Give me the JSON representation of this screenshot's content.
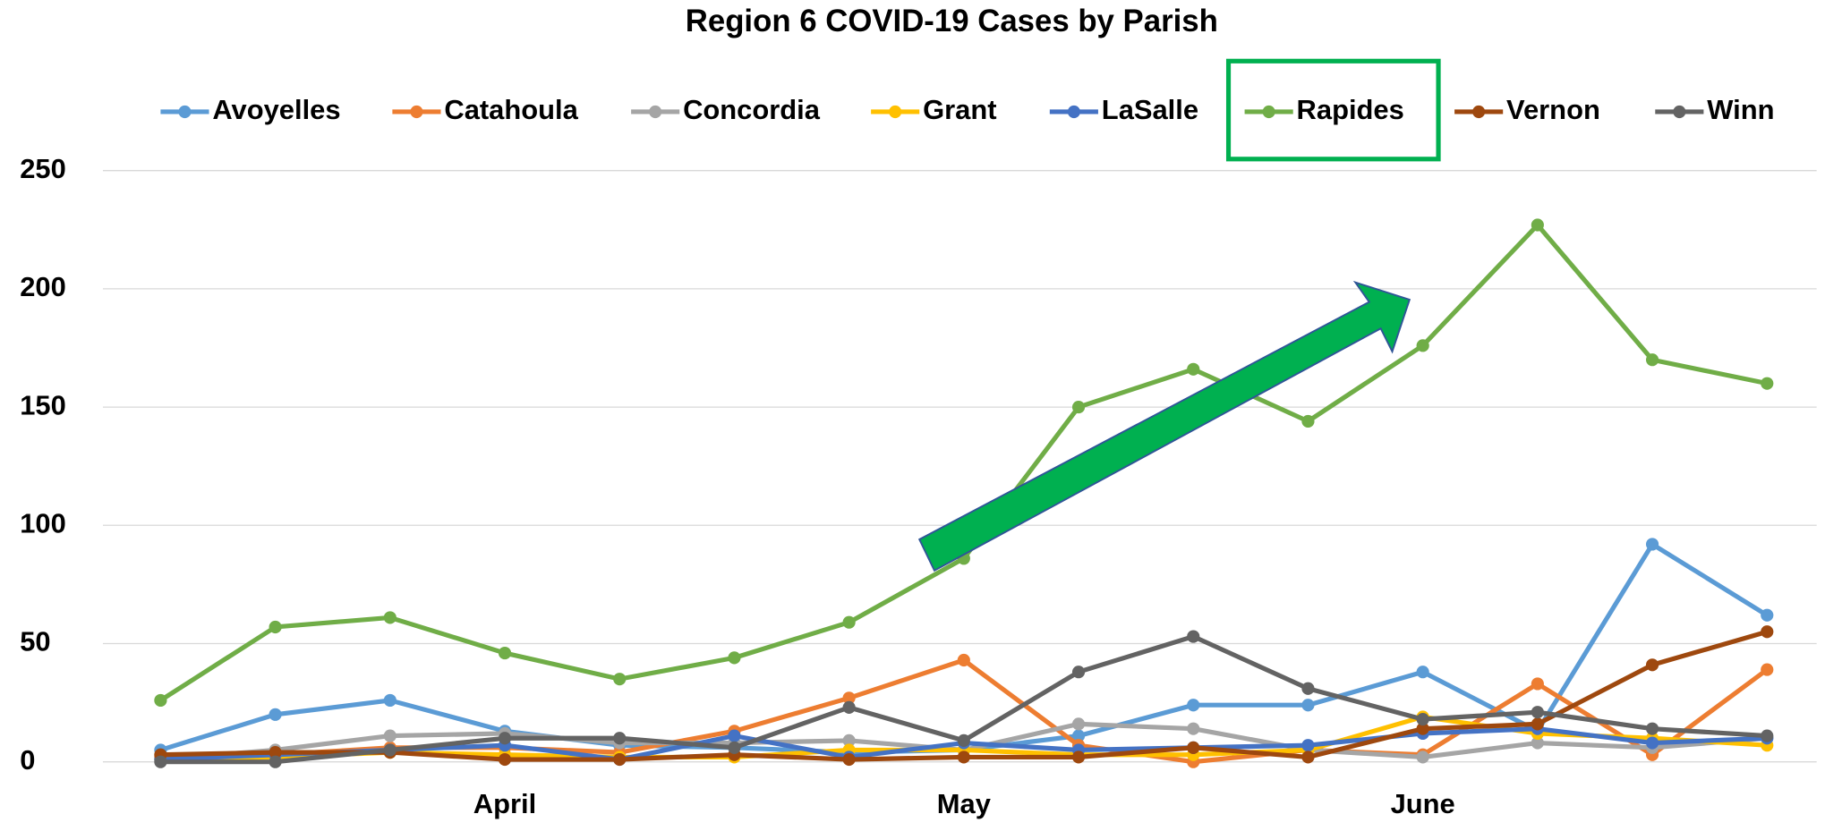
{
  "chart_data": {
    "type": "line",
    "title": "Region 6 COVID-19 Cases by Parish",
    "categories": [
      null,
      null,
      null,
      "April",
      null,
      null,
      null,
      "May",
      null,
      null,
      null,
      "June",
      null,
      null,
      null
    ],
    "series": [
      {
        "name": "Avoyelles",
        "color": "#5b9bd5",
        "values": [
          5,
          20,
          26,
          13,
          7,
          6,
          4,
          5,
          11,
          24,
          24,
          38,
          13,
          92,
          62
        ]
      },
      {
        "name": "Catahoula",
        "color": "#ed7d31",
        "values": [
          2,
          3,
          6,
          6,
          4,
          13,
          27,
          43,
          7,
          0,
          5,
          3,
          33,
          3,
          39
        ]
      },
      {
        "name": "Concordia",
        "color": "#a5a5a5",
        "values": [
          1,
          5,
          11,
          12,
          8,
          8,
          9,
          5,
          16,
          14,
          5,
          2,
          8,
          6,
          10
        ]
      },
      {
        "name": "Grant",
        "color": "#ffc000",
        "values": [
          1,
          2,
          4,
          3,
          2,
          2,
          5,
          5,
          3,
          3,
          5,
          19,
          12,
          10,
          7
        ]
      },
      {
        "name": "LaSalle",
        "color": "#4472c4",
        "values": [
          1,
          3,
          5,
          7,
          1,
          11,
          2,
          8,
          5,
          6,
          7,
          12,
          14,
          8,
          10
        ]
      },
      {
        "name": "Rapides",
        "color": "#70ad47",
        "values": [
          26,
          57,
          61,
          46,
          35,
          44,
          59,
          86,
          150,
          166,
          144,
          176,
          227,
          170,
          160
        ]
      },
      {
        "name": "Vernon",
        "color": "#9e480e",
        "values": [
          3,
          4,
          4,
          1,
          1,
          3,
          1,
          2,
          2,
          6,
          2,
          14,
          16,
          41,
          55
        ]
      },
      {
        "name": "Winn",
        "color": "#636363",
        "values": [
          0,
          0,
          5,
          10,
          10,
          6,
          23,
          9,
          38,
          53,
          31,
          18,
          21,
          14,
          11
        ]
      }
    ],
    "ylim": [
      0,
      250
    ],
    "yticks": [
      0,
      50,
      100,
      150,
      200,
      250
    ],
    "grid": true,
    "legend": "top"
  }
}
